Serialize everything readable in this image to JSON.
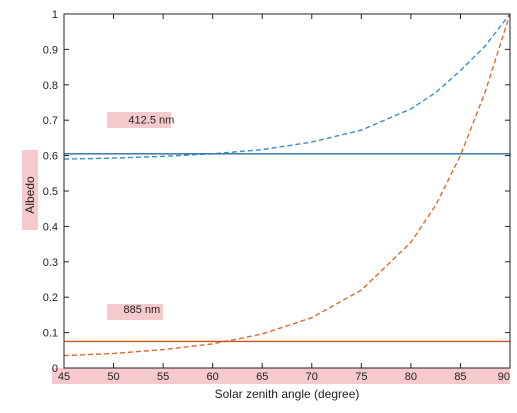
{
  "chart_data": {
    "type": "line",
    "title": "",
    "xlabel": "Solar zenith angle (degree)",
    "ylabel": "Albedo",
    "xlim": [
      45,
      90
    ],
    "ylim": [
      0,
      1
    ],
    "xticks": [
      45,
      50,
      55,
      60,
      65,
      70,
      75,
      80,
      85,
      90
    ],
    "yticks": [
      0,
      0.1,
      0.2,
      0.3,
      0.4,
      0.5,
      0.6,
      0.7,
      0.8,
      0.9,
      1
    ],
    "ytick_labels": [
      "0",
      "0.1",
      "0.2",
      "0.3",
      "0.4",
      "0.5",
      "0.6",
      "0.7",
      "0.8",
      "0.9",
      "1"
    ],
    "grid": false,
    "series": [
      {
        "color": "#3b8fc4",
        "style": "dashed",
        "x": [
          45,
          50,
          55,
          60,
          65,
          70,
          75,
          80,
          82.5,
          85,
          87.5,
          90
        ],
        "y": [
          0.59,
          0.593,
          0.598,
          0.605,
          0.617,
          0.638,
          0.672,
          0.732,
          0.778,
          0.84,
          0.91,
          1.0
        ]
      },
      {
        "color": "#2a6f9e",
        "style": "solid",
        "x": [
          45,
          90
        ],
        "y": [
          0.605,
          0.605
        ]
      },
      {
        "color": "#d96b35",
        "style": "dashed",
        "x": [
          45,
          50,
          55,
          60,
          65,
          70,
          75,
          80,
          82.5,
          85,
          87.5,
          90
        ],
        "y": [
          0.035,
          0.041,
          0.052,
          0.068,
          0.096,
          0.142,
          0.22,
          0.355,
          0.46,
          0.6,
          0.78,
          1.0
        ]
      },
      {
        "color": "#c8531a",
        "style": "solid",
        "x": [
          45,
          90
        ],
        "y": [
          0.075,
          0.075
        ]
      }
    ],
    "annotations": [
      {
        "text": "412.5 nm",
        "x": 51.5,
        "y": 0.69
      },
      {
        "text": "885 nm",
        "x": 51,
        "y": 0.155
      }
    ]
  }
}
